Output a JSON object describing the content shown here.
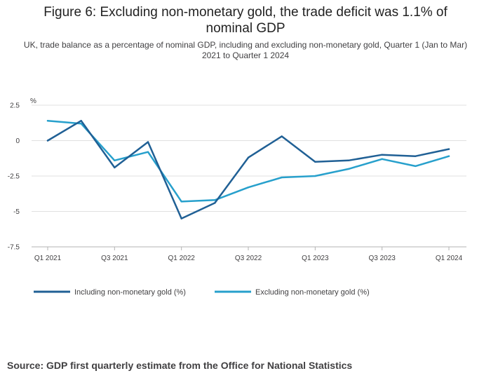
{
  "chart_data": {
    "type": "line",
    "title": "Figure 6: Excluding non-monetary gold, the trade deficit was 1.1% of nominal GDP",
    "subtitle": "UK, trade balance as a percentage of nominal GDP, including and excluding non-monetary gold, Quarter 1 (Jan to Mar) 2021 to Quarter 1 2024",
    "ylabel": "%",
    "xlabel": "",
    "ylim": [
      -7.5,
      2.5
    ],
    "yticks": [
      2.5,
      0,
      -2.5,
      -5,
      -7.5
    ],
    "ytick_labels": [
      "2.5",
      "0",
      "-2.5",
      "-5",
      "-7.5"
    ],
    "categories": [
      "Q1 2021",
      "Q2 2021",
      "Q3 2021",
      "Q4 2021",
      "Q1 2022",
      "Q2 2022",
      "Q3 2022",
      "Q4 2022",
      "Q1 2023",
      "Q2 2023",
      "Q3 2023",
      "Q4 2023",
      "Q1 2024"
    ],
    "xtick_labels": [
      "Q1 2021",
      "Q3 2021",
      "Q1 2022",
      "Q3 2022",
      "Q1 2023",
      "Q3 2023",
      "Q1 2024"
    ],
    "series": [
      {
        "name": "Including non-monetary gold (%)",
        "color": "#206095",
        "values": [
          0.0,
          1.4,
          -1.9,
          -0.1,
          -5.5,
          -4.4,
          -1.2,
          0.3,
          -1.5,
          -1.4,
          -1.0,
          -1.1,
          -0.6
        ]
      },
      {
        "name": "Excluding non-monetary gold (%)",
        "color": "#27a0cc",
        "values": [
          1.4,
          1.2,
          -1.4,
          -0.8,
          -4.3,
          -4.2,
          -3.3,
          -2.6,
          -2.5,
          -2.0,
          -1.3,
          -1.8,
          -1.1
        ]
      }
    ],
    "legend_position": "bottom-left"
  },
  "source": "Source: GDP first quarterly estimate from the Office for National Statistics"
}
